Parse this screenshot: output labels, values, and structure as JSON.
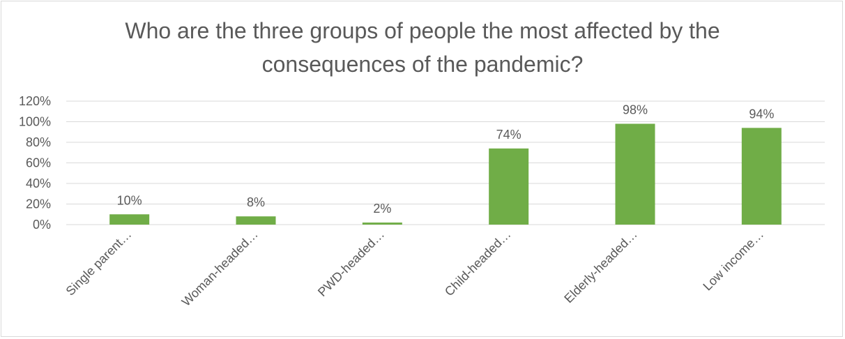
{
  "chart_data": {
    "type": "bar",
    "title": "Who are the three groups of people the most affected by the\nconsequences of the pandemic?",
    "categories": [
      "Single parent…",
      "Woman-headed…",
      "PWD-headed…",
      "Child-headed…",
      "Elderly-headed…",
      "Low income…"
    ],
    "values": [
      10,
      8,
      2,
      74,
      98,
      94
    ],
    "data_labels": [
      "10%",
      "8%",
      "2%",
      "74%",
      "98%",
      "94%"
    ],
    "y_ticks": [
      "0%",
      "20%",
      "40%",
      "60%",
      "80%",
      "100%",
      "120%"
    ],
    "ylim": [
      0,
      120
    ],
    "grid": true,
    "legend": "none",
    "colors": {
      "bar": "#70ad47",
      "grid": "#d9d9d9",
      "text": "#595959"
    }
  }
}
